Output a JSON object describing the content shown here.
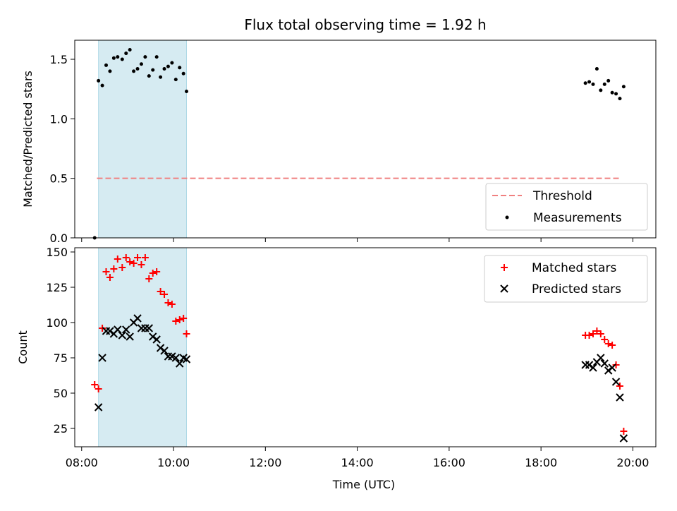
{
  "chart_data": [
    {
      "type": "scatter",
      "title": "Flux total observing time = 1.92 h",
      "xlabel": "",
      "ylabel": "Matched/Predicted stars",
      "xlim": [
        "07:51",
        "20:30"
      ],
      "ylim": [
        0,
        1.66
      ],
      "yticks": [
        "0.0",
        "0.5",
        "1.0",
        "1.5"
      ],
      "grid": false,
      "legend_position": "bottom-right",
      "shaded_span": {
        "start": "08:22",
        "end": "10:17",
        "color": "#add8e6"
      },
      "threshold": {
        "label": "Threshold",
        "value": 0.5,
        "x_start": "08:20",
        "x_end": "19:45",
        "color": "#f08080"
      },
      "series": [
        {
          "name": "Measurements",
          "color": "#000000",
          "marker": "dot",
          "x": [
            "08:17",
            "08:22",
            "08:27",
            "08:32",
            "08:37",
            "08:42",
            "08:47",
            "08:53",
            "08:58",
            "09:03",
            "09:08",
            "09:13",
            "09:18",
            "09:23",
            "09:28",
            "09:33",
            "09:38",
            "09:43",
            "09:48",
            "09:53",
            "09:58",
            "10:03",
            "10:08",
            "10:13",
            "10:17",
            "18:58",
            "19:03",
            "19:08",
            "19:13",
            "19:18",
            "19:23",
            "19:28",
            "19:33",
            "19:38",
            "19:43",
            "19:48"
          ],
          "y": [
            0.0,
            1.32,
            1.28,
            1.45,
            1.4,
            1.51,
            1.52,
            1.5,
            1.55,
            1.58,
            1.4,
            1.42,
            1.46,
            1.52,
            1.36,
            1.41,
            1.52,
            1.35,
            1.42,
            1.44,
            1.47,
            1.33,
            1.43,
            1.38,
            1.23,
            1.3,
            1.31,
            1.29,
            1.42,
            1.24,
            1.29,
            1.32,
            1.22,
            1.21,
            1.17,
            1.27
          ]
        }
      ]
    },
    {
      "type": "scatter",
      "title": "",
      "xlabel": "Time (UTC)",
      "ylabel": "Count",
      "xlim": [
        "07:51",
        "20:30"
      ],
      "ylim": [
        12,
        153
      ],
      "yticks": [
        "25",
        "50",
        "75",
        "100",
        "125",
        "150"
      ],
      "xticks": [
        "08:00",
        "10:00",
        "12:00",
        "14:00",
        "16:00",
        "18:00",
        "20:00"
      ],
      "grid": false,
      "legend_position": "top-right",
      "shaded_span": {
        "start": "08:22",
        "end": "10:17",
        "color": "#add8e6"
      },
      "series": [
        {
          "name": "Matched stars",
          "color": "#ff0000",
          "marker": "plus",
          "x": [
            "08:17",
            "08:22",
            "08:27",
            "08:32",
            "08:37",
            "08:42",
            "08:47",
            "08:53",
            "08:58",
            "09:03",
            "09:08",
            "09:13",
            "09:18",
            "09:23",
            "09:28",
            "09:33",
            "09:38",
            "09:43",
            "09:48",
            "09:53",
            "09:58",
            "10:03",
            "10:08",
            "10:13",
            "10:17",
            "18:58",
            "19:03",
            "19:08",
            "19:13",
            "19:18",
            "19:23",
            "19:28",
            "19:33",
            "19:38",
            "19:43",
            "19:48"
          ],
          "y": [
            56,
            53,
            96,
            136,
            132,
            138,
            145,
            139,
            146,
            143,
            142,
            146,
            141,
            146,
            131,
            135,
            136,
            122,
            120,
            114,
            113,
            101,
            102,
            103,
            92,
            91,
            91,
            92,
            94,
            92,
            88,
            85,
            84,
            70,
            55,
            23
          ]
        },
        {
          "name": "Predicted stars",
          "color": "#000000",
          "marker": "x",
          "x": [
            "08:22",
            "08:27",
            "08:32",
            "08:37",
            "08:42",
            "08:47",
            "08:53",
            "08:58",
            "09:03",
            "09:08",
            "09:13",
            "09:18",
            "09:23",
            "09:28",
            "09:33",
            "09:38",
            "09:43",
            "09:48",
            "09:53",
            "09:58",
            "10:03",
            "10:08",
            "10:13",
            "10:17",
            "18:58",
            "19:03",
            "19:08",
            "19:13",
            "19:18",
            "19:23",
            "19:28",
            "19:33",
            "19:38",
            "19:43",
            "19:48"
          ],
          "y": [
            40,
            75,
            94,
            94,
            92,
            95,
            91,
            95,
            90,
            100,
            103,
            96,
            96,
            96,
            90,
            88,
            82,
            80,
            76,
            76,
            75,
            71,
            75,
            74,
            70,
            70,
            68,
            72,
            75,
            71,
            66,
            68,
            58,
            47,
            18
          ]
        }
      ]
    }
  ]
}
